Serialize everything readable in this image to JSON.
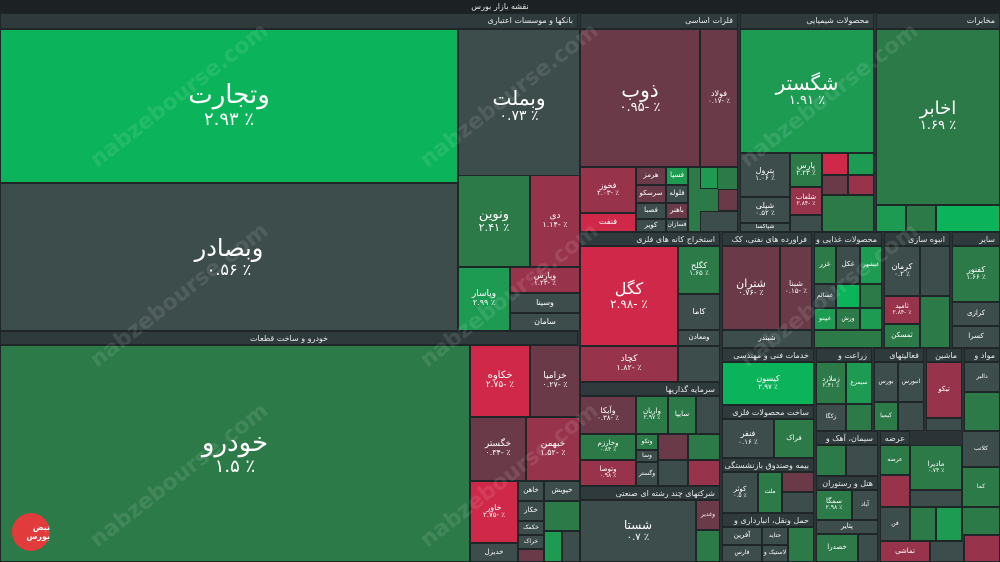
{
  "title": "نقشه بازار بورس",
  "watermark": "nabzebourse.com",
  "logo_text": "نبض بورس",
  "colors": {
    "neutral": "#3d4d4b",
    "green1": "#2c7a48",
    "green2": "#1d9b53",
    "green3": "#0bb45a",
    "red1": "#6a3a48",
    "red2": "#98334c",
    "red3": "#cf2848"
  },
  "headers": [
    {
      "id": "banks",
      "label": "بانکها و موسسات اعتباری"
    },
    {
      "id": "metals",
      "label": "فلزات اساسی"
    },
    {
      "id": "chem",
      "label": "محصولات شیمیایی"
    },
    {
      "id": "telecom",
      "label": "مخابرات"
    },
    {
      "id": "auto",
      "label": "خودرو و ساخت قطعات"
    },
    {
      "id": "mining",
      "label": "استخراج کانه های فلزی"
    },
    {
      "id": "oil",
      "label": "فراورده های نفتی، کک"
    },
    {
      "id": "food",
      "label": "محصولات غذایی و"
    },
    {
      "id": "bulk",
      "label": "انبوه سازی"
    },
    {
      "id": "other",
      "label": "سایر"
    },
    {
      "id": "invest",
      "label": "سرمایه گذاریها"
    },
    {
      "id": "eng",
      "label": "خدمات فنی و مهندسی"
    },
    {
      "id": "agri",
      "label": "زراعت و"
    },
    {
      "id": "act",
      "label": "فعالیتهای"
    },
    {
      "id": "mach",
      "label": "ماشین"
    },
    {
      "id": "mava",
      "label": "مواد و"
    },
    {
      "id": "wood",
      "label": "ساخت محصولات فلزی"
    },
    {
      "id": "cement",
      "label": "سیمان، آهک و"
    },
    {
      "id": "insur",
      "label": "بیمه وصندوق بازنشستگی"
    },
    {
      "id": "multi",
      "label": "شرکتهای چند رشته ای صنعتی"
    },
    {
      "id": "hotel",
      "label": "هتل و رستوران"
    },
    {
      "id": "trans",
      "label": "حمل ونقل، انبارداری و"
    }
  ],
  "cells": [
    {
      "id": "vtejarat",
      "name": "وتجارت",
      "pct": "٪ ۲.۹۳"
    },
    {
      "id": "vbemellat",
      "name": "وبملت",
      "pct": "٪ ۰.۷۳"
    },
    {
      "id": "vbsader",
      "name": "وبصادر",
      "pct": "٪ ۰.۵۶"
    },
    {
      "id": "vnovin",
      "name": "ونوین",
      "pct": "٪ ۲.۴۱"
    },
    {
      "id": "dey",
      "name": "دی",
      "pct": "٪ -۱.۱۴"
    },
    {
      "id": "vpars",
      "name": "وپارس",
      "pct": "٪ -۱.۲۳"
    },
    {
      "id": "vpasar",
      "name": "وپاسار",
      "pct": "٪ ۲.۹۹"
    },
    {
      "id": "vsina",
      "name": "وسینا",
      "pct": ""
    },
    {
      "id": "saman",
      "name": "سامان",
      "pct": ""
    },
    {
      "id": "zob",
      "name": "ذوب",
      "pct": "٪ -۰.۹۵"
    },
    {
      "id": "foolad",
      "name": "فولاد",
      "pct": "٪ -۰.۱۷"
    },
    {
      "id": "khouz",
      "name": "فخوز",
      "pct": "٪ -۲.۰۳"
    },
    {
      "id": "hormoz",
      "name": "هرمز",
      "pct": ""
    },
    {
      "id": "fsepa",
      "name": "فسپا",
      "pct": ""
    },
    {
      "id": "seraskou",
      "name": "سرسکو",
      "pct": ""
    },
    {
      "id": "folavy",
      "name": "فلوله",
      "pct": ""
    },
    {
      "id": "fenft",
      "name": "فنفت",
      "pct": ""
    },
    {
      "id": "kavir",
      "name": "کویر",
      "pct": ""
    },
    {
      "id": "bahonar",
      "name": "باهنر",
      "pct": ""
    },
    {
      "id": "fessapa",
      "name": "فصبا",
      "pct": ""
    },
    {
      "id": "fesazan",
      "name": "فسازان",
      "pct": ""
    },
    {
      "id": "shegostar",
      "name": "شگستر",
      "pct": "٪ ۱.۹۱"
    },
    {
      "id": "pterol",
      "name": "پترول",
      "pct": "٪ ۱.۰۶"
    },
    {
      "id": "parsc",
      "name": "پارس",
      "pct": "٪ ۲.۲۳"
    },
    {
      "id": "shepli",
      "name": "شپلی",
      "pct": "٪ ۰.۵۲"
    },
    {
      "id": "shabaab",
      "name": "شلعاب",
      "pct": "٪ -۲.۸۴"
    },
    {
      "id": "shiraz",
      "name": "شیراز",
      "pct": ""
    },
    {
      "id": "shekalla",
      "name": "شپاکسا",
      "pct": ""
    },
    {
      "id": "akhaber",
      "name": "اخابر",
      "pct": "٪ ۱.۶۹"
    },
    {
      "id": "khodro",
      "name": "خودرو",
      "pct": "٪ ۱.۵"
    },
    {
      "id": "khakave",
      "name": "خکاوه",
      "pct": "٪ -۲.۷۵"
    },
    {
      "id": "khazamia",
      "name": "خزامیا",
      "pct": "٪ -۰.۲۷"
    },
    {
      "id": "khgostar",
      "name": "خگستر",
      "pct": "٪ -۰.۳۴"
    },
    {
      "id": "khbahman",
      "name": "خبهمن",
      "pct": "٪ -۱.۵۲"
    },
    {
      "id": "khavar",
      "name": "خاور",
      "pct": "٪ -۲.۷۵"
    },
    {
      "id": "khazin",
      "name": "خاهن",
      "pct": ""
    },
    {
      "id": "khpoulad",
      "name": "خپویش",
      "pct": ""
    },
    {
      "id": "khakar",
      "name": "خکار",
      "pct": ""
    },
    {
      "id": "khamc",
      "name": "خکمک",
      "pct": ""
    },
    {
      "id": "khrakt",
      "name": "خراک",
      "pct": ""
    },
    {
      "id": "khdizel",
      "name": "خدیزل",
      "pct": ""
    },
    {
      "id": "kegol",
      "name": "کگل",
      "pct": "٪ -۲.۹۸"
    },
    {
      "id": "kechad",
      "name": "کچاد",
      "pct": "٪ -۱.۸۲"
    },
    {
      "id": "kebafgh",
      "name": "کگلح",
      "pct": "٪ ۱.۶۵"
    },
    {
      "id": "kama",
      "name": "کاما",
      "pct": ""
    },
    {
      "id": "vmaaden",
      "name": "ومعادن",
      "pct": ""
    },
    {
      "id": "shandar",
      "name": "شبندر",
      "pct": ""
    },
    {
      "id": "shetran",
      "name": "شتران",
      "pct": "٪ -۰.۷۶"
    },
    {
      "id": "shebna",
      "name": "شبنا",
      "pct": "٪ -۰.۱۵"
    },
    {
      "id": "ghazar",
      "name": "غزر",
      "pct": ""
    },
    {
      "id": "ghekal",
      "name": "غکل",
      "pct": ""
    },
    {
      "id": "ghbeshr",
      "name": "غبشهر",
      "pct": ""
    },
    {
      "id": "ghasalam",
      "name": "غسالم",
      "pct": ""
    },
    {
      "id": "ghpino",
      "name": "غپینو",
      "pct": ""
    },
    {
      "id": "ghourds",
      "name": "ورش",
      "pct": ""
    },
    {
      "id": "kerman",
      "name": "کرمان",
      "pct": "٪ ۰.۲"
    },
    {
      "id": "sakhab",
      "name": "ثامید",
      "pct": "٪ -۲.۸۴"
    },
    {
      "id": "samaskan",
      "name": "ثمسکن",
      "pct": ""
    },
    {
      "id": "kenoor",
      "name": "کفنور",
      "pct": "٪ ۱.۶۶"
    },
    {
      "id": "kerazi",
      "name": "کرازی",
      "pct": ""
    },
    {
      "id": "kesra",
      "name": "کسرا",
      "pct": ""
    },
    {
      "id": "vayeka",
      "name": "وآیکا",
      "pct": "٪ -۰.۳۸"
    },
    {
      "id": "varian",
      "name": "واریان",
      "pct": "٪ ۲.۹۷"
    },
    {
      "id": "saipa",
      "name": "سایپا",
      "pct": ""
    },
    {
      "id": "vkharazm",
      "name": "وخارزم",
      "pct": "٪ ۰.۸۴"
    },
    {
      "id": "vteko",
      "name": "وتکو",
      "pct": ""
    },
    {
      "id": "vsaipa",
      "name": "وسا",
      "pct": ""
    },
    {
      "id": "vtousa",
      "name": "وتوصا",
      "pct": "٪ ۰.۹۸"
    },
    {
      "id": "vgostar",
      "name": "وگستر",
      "pct": ""
    },
    {
      "id": "shasta",
      "name": "شستا",
      "pct": "٪ ۰.۷"
    },
    {
      "id": "vghadir",
      "name": "وغدیر",
      "pct": ""
    },
    {
      "id": "kison",
      "name": "کیسون",
      "pct": "٪ ۲.۹۷"
    },
    {
      "id": "fanafer",
      "name": "فنفر",
      "pct": "٪ ۰.۱۶"
    },
    {
      "id": "feraak",
      "name": "فراک",
      "pct": ""
    },
    {
      "id": "kosar",
      "name": "کوثر",
      "pct": "٪ ۰.۵"
    },
    {
      "id": "melat",
      "name": "ملت",
      "pct": ""
    },
    {
      "id": "zmela",
      "name": "زملارد",
      "pct": "٪ ۲.۴۱"
    },
    {
      "id": "simorgh",
      "name": "سیمرغ",
      "pct": ""
    },
    {
      "id": "zagka",
      "name": "زکگا",
      "pct": ""
    },
    {
      "id": "bourse",
      "name": "بورس",
      "pct": ""
    },
    {
      "id": "anborse",
      "name": "انبورس",
      "pct": ""
    },
    {
      "id": "kabima",
      "name": "کیمیا",
      "pct": ""
    },
    {
      "id": "tico",
      "name": "تیکو",
      "pct": ""
    },
    {
      "id": "dalbir",
      "name": "دالبر",
      "pct": ""
    },
    {
      "id": "arzesh",
      "name": "عرضه",
      "pct": ""
    },
    {
      "id": "madira",
      "name": "مادیرا",
      "pct": "٪ ۰.۷۴"
    },
    {
      "id": "kalaty",
      "name": "کلاتب",
      "pct": ""
    },
    {
      "id": "kamaa",
      "name": "کما",
      "pct": ""
    },
    {
      "id": "smega",
      "name": "سمگا",
      "pct": "٪ ۲.۹۸"
    },
    {
      "id": "abad",
      "name": "آباد",
      "pct": ""
    },
    {
      "id": "fan",
      "name": "فن",
      "pct": ""
    },
    {
      "id": "hekshti",
      "name": "حکشتی",
      "pct": ""
    },
    {
      "id": "afarin",
      "name": "آفرین",
      "pct": ""
    },
    {
      "id": "hetayd",
      "name": "حتاید",
      "pct": ""
    },
    {
      "id": "farhan",
      "name": "فارس",
      "pct": ""
    },
    {
      "id": "lastik",
      "name": "لاستیک و",
      "pct": ""
    },
    {
      "id": "petayr",
      "name": "پتایر",
      "pct": "٪ ۰.۸۹"
    },
    {
      "id": "khasadra",
      "name": "خصدرا",
      "pct": ""
    },
    {
      "id": "tamsazi",
      "name": "تماشی",
      "pct": ""
    }
  ]
}
